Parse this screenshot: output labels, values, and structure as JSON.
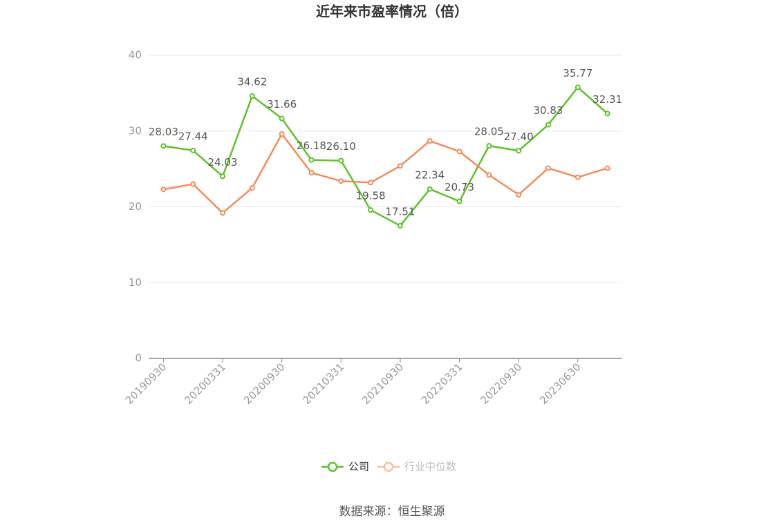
{
  "chart_data": {
    "type": "line",
    "title": "近年来市盈率情况（倍）",
    "categories": [
      "20190930",
      null,
      "20200331",
      null,
      "20200930",
      null,
      "20210331",
      null,
      "20210930",
      null,
      "20220331",
      null,
      "20220930",
      null,
      "20230630",
      null
    ],
    "series": [
      {
        "name": "公司",
        "color": "#5cc12b",
        "values": [
          28.03,
          27.44,
          24.03,
          34.62,
          31.66,
          26.18,
          26.1,
          19.58,
          17.51,
          22.34,
          20.73,
          28.05,
          27.4,
          30.83,
          35.77,
          32.31
        ],
        "value_labels": [
          "28.03",
          "27.44",
          "24.03",
          "34.62",
          "31.66",
          "26.18",
          "26.10",
          "19.58",
          "17.51",
          "22.34",
          "20.73",
          "28.05",
          "27.40",
          "30.83",
          "35.77",
          "32.31"
        ]
      },
      {
        "name": "行业中位数",
        "color": "#f28b5c",
        "values": [
          22.3,
          23.0,
          19.2,
          22.5,
          29.6,
          24.5,
          23.4,
          23.2,
          25.4,
          28.7,
          27.3,
          24.2,
          21.6,
          25.1,
          23.9,
          25.1
        ]
      }
    ],
    "ylim": [
      0,
      40
    ],
    "yticks": [
      0,
      10,
      20,
      30,
      40
    ],
    "grid": true,
    "source": "数据来源：恒生聚源"
  }
}
